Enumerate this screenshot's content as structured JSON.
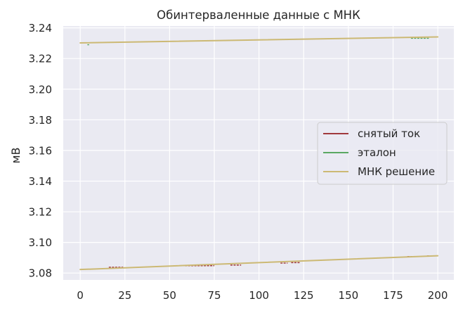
{
  "chart_data": {
    "type": "line",
    "title": "Обинтерваленные данные с МНК",
    "xlabel": "",
    "ylabel": "мВ",
    "xlim": [
      -9.5,
      209
    ],
    "ylim": [
      3.0755,
      3.2412
    ],
    "xticks": [
      0,
      25,
      50,
      75,
      100,
      125,
      150,
      175,
      200
    ],
    "yticks": [
      3.08,
      3.1,
      3.12,
      3.14,
      3.16,
      3.18,
      3.2,
      3.22,
      3.24
    ],
    "grid": true,
    "legend_position": "center-right",
    "background": "#eaeaf2",
    "series": [
      {
        "name": "снятый ток",
        "color": "#a0393c",
        "segments": [
          {
            "x": [
              16,
              24
            ],
            "y": [
              3.0838,
              3.0838
            ]
          },
          {
            "x": [
              55,
              75
            ],
            "y": [
              3.0848,
              3.0848
            ]
          },
          {
            "x": [
              84,
              90
            ],
            "y": [
              3.0852,
              3.0852
            ]
          },
          {
            "x": [
              112,
              116
            ],
            "y": [
              3.0865,
              3.0865
            ]
          },
          {
            "x": [
              118,
              123
            ],
            "y": [
              3.0868,
              3.0868
            ]
          },
          {
            "x": [
              183,
              186
            ],
            "y": [
              3.0908,
              3.0908
            ]
          },
          {
            "x": [
              194,
              197
            ],
            "y": [
              3.0912,
              3.0912
            ]
          }
        ]
      },
      {
        "name": "эталон",
        "color": "#5aa862",
        "segments": [
          {
            "x": [
              185,
              195
            ],
            "y": [
              3.2332,
              3.2332
            ]
          },
          {
            "x": [
              4,
              5
            ],
            "y": [
              3.229,
              3.229
            ]
          }
        ]
      },
      {
        "name": "МНК решение",
        "color": "#ccb974",
        "lines": [
          {
            "x": [
              0,
              200
            ],
            "y": [
              3.0823,
              3.0913
            ]
          },
          {
            "x": [
              0,
              200
            ],
            "y": [
              3.2302,
              3.2341
            ]
          }
        ]
      }
    ]
  }
}
